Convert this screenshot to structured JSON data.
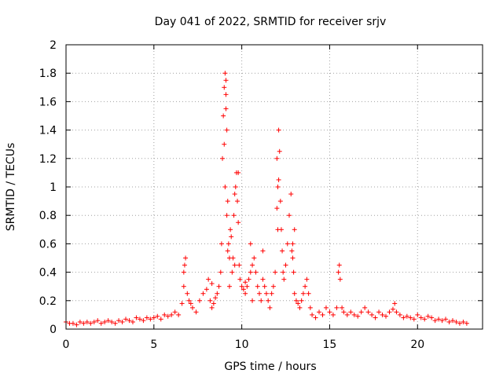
{
  "chart_data": {
    "type": "scatter",
    "title": "Day 041 of 2022, SRMTID for receiver srjv",
    "xlabel": "GPS time / hours",
    "ylabel": "SRMTID / TECUs",
    "xlim": [
      0,
      23.7
    ],
    "ylim": [
      0,
      2
    ],
    "grid": true,
    "marker": "plus",
    "color": "#ff0000",
    "x_ticks": [
      0,
      5,
      10,
      15,
      20
    ],
    "x_tick_labels": [
      "0",
      "5",
      "10",
      "15",
      "20"
    ],
    "y_ticks": [
      0,
      0.2,
      0.4,
      0.6,
      0.8,
      1.0,
      1.2,
      1.4,
      1.6,
      1.8,
      2.0
    ],
    "y_tick_labels": [
      "0",
      "0.2",
      "0.4",
      "0.6",
      "0.8",
      "1",
      "1.2",
      "1.4",
      "1.6",
      "1.8",
      "2"
    ],
    "series": [
      {
        "name": "SRMTID",
        "x": [
          0.0,
          0.2,
          0.4,
          0.6,
          0.8,
          1.0,
          1.2,
          1.4,
          1.6,
          1.8,
          2.0,
          2.2,
          2.4,
          2.6,
          2.8,
          3.0,
          3.2,
          3.4,
          3.6,
          3.8,
          4.0,
          4.2,
          4.4,
          4.6,
          4.8,
          5.0,
          5.2,
          5.4,
          5.6,
          5.8,
          6.0,
          6.2,
          6.4,
          6.6,
          6.7,
          6.75,
          6.8,
          6.9,
          7.0,
          7.1,
          7.2,
          7.4,
          7.6,
          7.8,
          8.0,
          8.1,
          8.2,
          8.3,
          8.4,
          8.5,
          8.6,
          8.7,
          8.8,
          8.85,
          8.9,
          8.95,
          9.0,
          9.05,
          9.1,
          9.15,
          9.2,
          9.25,
          9.3,
          9.35,
          9.4,
          9.45,
          9.5,
          9.55,
          9.6,
          9.65,
          9.7,
          9.75,
          9.8,
          9.85,
          9.9,
          10.0,
          10.1,
          10.2,
          10.3,
          10.4,
          10.5,
          10.6,
          10.7,
          10.8,
          10.9,
          11.0,
          11.1,
          11.2,
          11.3,
          11.4,
          11.5,
          11.6,
          11.7,
          11.8,
          11.9,
          12.0,
          12.05,
          12.1,
          12.15,
          12.2,
          12.25,
          12.3,
          12.35,
          12.4,
          12.5,
          12.6,
          12.7,
          12.8,
          12.85,
          12.9,
          12.95,
          13.0,
          13.1,
          13.2,
          13.3,
          13.4,
          13.5,
          13.6,
          13.7,
          13.8,
          13.9,
          14.0,
          14.2,
          14.4,
          14.6,
          14.8,
          15.0,
          15.2,
          15.4,
          15.5,
          15.55,
          15.6,
          15.7,
          15.8,
          16.0,
          16.2,
          16.4,
          16.6,
          16.8,
          17.0,
          17.2,
          17.4,
          17.6,
          17.8,
          18.0,
          18.2,
          18.4,
          18.6,
          18.7,
          18.8,
          19.0,
          19.2,
          19.4,
          19.6,
          19.8,
          20.0,
          20.2,
          20.4,
          20.6,
          20.8,
          21.0,
          21.2,
          21.4,
          21.6,
          21.8,
          22.0,
          22.2,
          22.4,
          22.6,
          22.8,
          9.1,
          9.1,
          9.0,
          9.05,
          9.15,
          9.2,
          9.6,
          9.8,
          12.0,
          12.1,
          12.05,
          12.9,
          13.0,
          10.6,
          10.5,
          6.7,
          11.2,
          10.2,
          9.3,
          8.3
        ],
        "y": [
          0.05,
          0.04,
          0.04,
          0.03,
          0.05,
          0.04,
          0.05,
          0.04,
          0.05,
          0.06,
          0.04,
          0.05,
          0.06,
          0.05,
          0.04,
          0.06,
          0.05,
          0.07,
          0.06,
          0.05,
          0.08,
          0.07,
          0.06,
          0.08,
          0.07,
          0.08,
          0.09,
          0.07,
          0.1,
          0.09,
          0.1,
          0.12,
          0.1,
          0.18,
          0.3,
          0.45,
          0.5,
          0.25,
          0.2,
          0.18,
          0.15,
          0.12,
          0.2,
          0.25,
          0.28,
          0.35,
          0.2,
          0.15,
          0.18,
          0.22,
          0.25,
          0.3,
          0.4,
          0.6,
          1.2,
          1.5,
          1.7,
          1.8,
          1.65,
          1.4,
          0.9,
          0.6,
          0.3,
          0.7,
          0.65,
          0.4,
          0.5,
          0.8,
          0.95,
          1.0,
          1.1,
          0.9,
          0.75,
          0.45,
          0.35,
          0.3,
          0.28,
          0.25,
          0.3,
          0.35,
          0.4,
          0.45,
          0.5,
          0.4,
          0.3,
          0.25,
          0.2,
          0.35,
          0.3,
          0.25,
          0.2,
          0.15,
          0.25,
          0.3,
          0.4,
          0.85,
          1.0,
          1.4,
          1.25,
          0.9,
          0.7,
          0.55,
          0.4,
          0.35,
          0.45,
          0.6,
          0.8,
          0.95,
          0.55,
          0.5,
          0.4,
          0.25,
          0.2,
          0.18,
          0.15,
          0.2,
          0.25,
          0.3,
          0.35,
          0.25,
          0.15,
          0.1,
          0.08,
          0.12,
          0.1,
          0.15,
          0.12,
          0.1,
          0.15,
          0.4,
          0.45,
          0.35,
          0.15,
          0.12,
          0.1,
          0.12,
          0.1,
          0.09,
          0.12,
          0.15,
          0.12,
          0.1,
          0.08,
          0.12,
          0.1,
          0.09,
          0.12,
          0.14,
          0.18,
          0.12,
          0.1,
          0.08,
          0.09,
          0.08,
          0.07,
          0.1,
          0.08,
          0.07,
          0.09,
          0.08,
          0.06,
          0.07,
          0.06,
          0.07,
          0.05,
          0.06,
          0.05,
          0.04,
          0.05,
          0.04,
          1.75,
          1.55,
          1.3,
          1.0,
          0.8,
          0.55,
          0.45,
          1.1,
          1.2,
          1.05,
          0.7,
          0.6,
          0.7,
          0.2,
          0.6,
          0.4,
          0.55,
          0.33,
          0.5,
          0.32
        ]
      }
    ]
  }
}
